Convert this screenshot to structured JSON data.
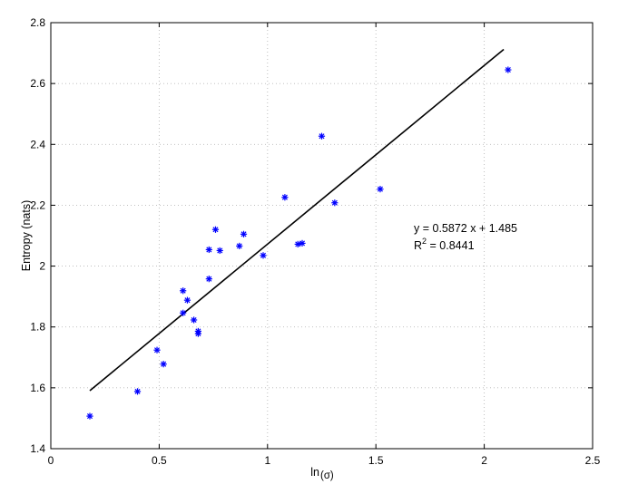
{
  "chart_data": {
    "type": "scatter",
    "title": "",
    "xlabel": "ln",
    "xlabel_sub": "(σ)",
    "ylabel": "Entropy (nats)",
    "xlim": [
      0,
      2.5
    ],
    "ylim": [
      1.4,
      2.8
    ],
    "xticks": [
      0,
      0.5,
      1,
      1.5,
      2,
      2.5
    ],
    "xtick_labels": [
      "0",
      "0.5",
      "1",
      "1.5",
      "2",
      "2.5"
    ],
    "yticks": [
      1.4,
      1.6,
      1.8,
      2.0,
      2.2,
      2.4,
      2.6,
      2.8
    ],
    "ytick_labels": [
      "1.4",
      "1.6",
      "1.8",
      "2",
      "2.2",
      "2.4",
      "2.6",
      "2.8"
    ],
    "grid": true,
    "marker_color": "#0000ff",
    "marker": "asterisk",
    "points": [
      {
        "x": 0.18,
        "y": 1.507
      },
      {
        "x": 0.4,
        "y": 1.588
      },
      {
        "x": 0.49,
        "y": 1.724
      },
      {
        "x": 0.52,
        "y": 1.678
      },
      {
        "x": 0.61,
        "y": 1.919
      },
      {
        "x": 0.61,
        "y": 1.846
      },
      {
        "x": 0.63,
        "y": 1.888
      },
      {
        "x": 0.66,
        "y": 1.823
      },
      {
        "x": 0.68,
        "y": 1.786
      },
      {
        "x": 0.68,
        "y": 1.778
      },
      {
        "x": 0.73,
        "y": 2.054
      },
      {
        "x": 0.73,
        "y": 1.958
      },
      {
        "x": 0.76,
        "y": 2.12
      },
      {
        "x": 0.78,
        "y": 2.051
      },
      {
        "x": 0.87,
        "y": 2.066
      },
      {
        "x": 0.89,
        "y": 2.105
      },
      {
        "x": 0.98,
        "y": 2.035
      },
      {
        "x": 1.08,
        "y": 2.226
      },
      {
        "x": 1.14,
        "y": 2.072
      },
      {
        "x": 1.16,
        "y": 2.075
      },
      {
        "x": 1.25,
        "y": 2.427
      },
      {
        "x": 1.31,
        "y": 2.208
      },
      {
        "x": 1.52,
        "y": 2.253
      },
      {
        "x": 2.11,
        "y": 2.645
      }
    ],
    "fit_line": {
      "slope": 0.5872,
      "intercept": 1.485,
      "x_range": [
        0.18,
        2.09
      ],
      "color": "#000000"
    },
    "annotations": {
      "equation": "y = 0.5872 x + 1.485",
      "r2_prefix": "R",
      "r2_superscript": "2",
      "r2_value": " = 0.8441"
    }
  }
}
